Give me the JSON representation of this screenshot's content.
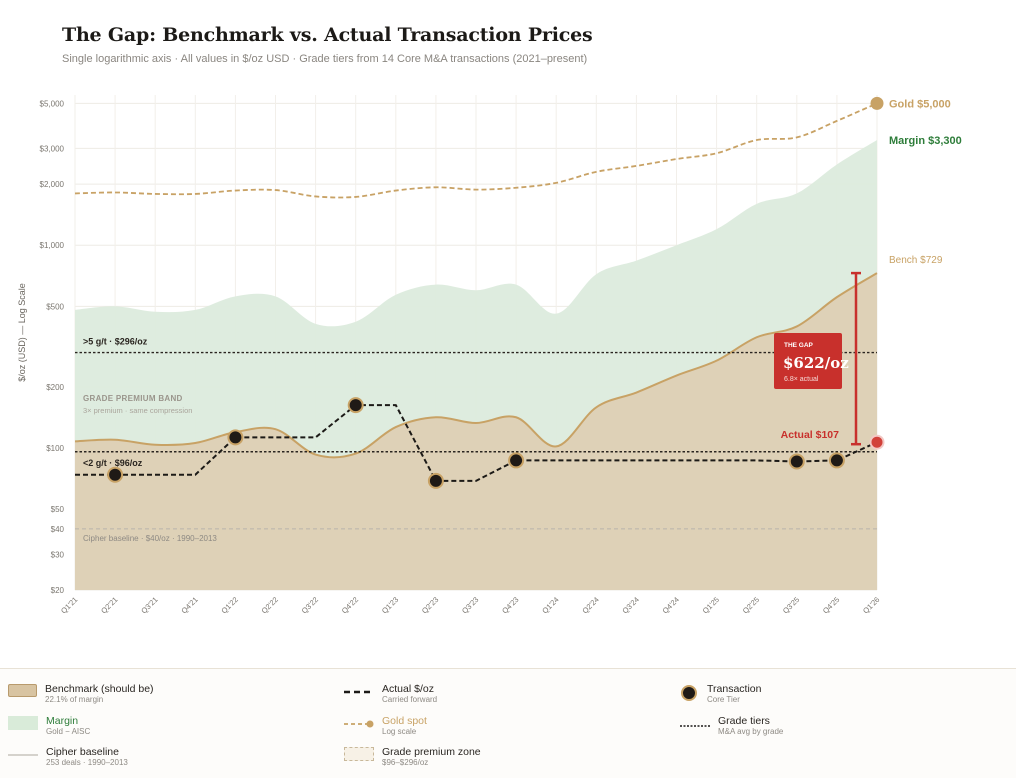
{
  "title": "The Gap: Benchmark vs. Actual Transaction Prices",
  "subtitle": "Single logarithmic axis · All values in $/oz USD · Grade tiers from 14 Core M&A transactions (2021–present)",
  "chart_data": {
    "type": "area",
    "ylabel": "$/oz (USD) — Log Scale",
    "yscale": "log",
    "ylim": [
      20,
      5500
    ],
    "yticks": [
      {
        "v": 20,
        "label": "$20"
      },
      {
        "v": 30,
        "label": "$30"
      },
      {
        "v": 40,
        "label": "$40"
      },
      {
        "v": 50,
        "label": "$50"
      },
      {
        "v": 100,
        "label": "$100"
      },
      {
        "v": 200,
        "label": "$200"
      },
      {
        "v": 500,
        "label": "$500"
      },
      {
        "v": 1000,
        "label": "$1,000"
      },
      {
        "v": 2000,
        "label": "$2,000"
      },
      {
        "v": 3000,
        "label": "$3,000"
      },
      {
        "v": 5000,
        "label": "$5,000"
      }
    ],
    "categories": [
      "Q1'21",
      "Q2'21",
      "Q3'21",
      "Q4'21",
      "Q1'22",
      "Q2'22",
      "Q3'22",
      "Q4'22",
      "Q1'23",
      "Q2'23",
      "Q3'23",
      "Q4'23",
      "Q1'24",
      "Q2'24",
      "Q3'24",
      "Q4'24",
      "Q1'25",
      "Q2'25",
      "Q3'25",
      "Q4'25",
      "Q1'26"
    ],
    "series": [
      {
        "name": "Gold spot",
        "color": "#c8a265",
        "values": [
          1800,
          1820,
          1790,
          1790,
          1860,
          1870,
          1740,
          1730,
          1860,
          1930,
          1880,
          1920,
          2030,
          2300,
          2460,
          2660,
          2840,
          3300,
          3400,
          4100,
          5000
        ]
      },
      {
        "name": "Margin",
        "color": "#2e7d3a",
        "values": [
          480,
          500,
          470,
          480,
          560,
          560,
          410,
          420,
          570,
          640,
          600,
          640,
          460,
          720,
          840,
          1000,
          1200,
          1600,
          1800,
          2500,
          3300
        ]
      },
      {
        "name": "Benchmark (should be)",
        "color": "#c8a265",
        "values": [
          108,
          110,
          104,
          106,
          120,
          124,
          93,
          94,
          127,
          142,
          133,
          142,
          102,
          159,
          188,
          228,
          270,
          352,
          398,
          555,
          729
        ]
      },
      {
        "name": "Actual $/oz",
        "color": "#2a2520",
        "values": [
          74,
          74,
          74,
          74,
          113,
          113,
          113,
          163,
          163,
          69,
          69,
          87,
          87,
          87,
          87,
          87,
          87,
          87,
          86,
          87,
          107
        ]
      }
    ],
    "transactions": [
      {
        "x": "Q2'21",
        "v": 74
      },
      {
        "x": "Q1'22",
        "v": 113
      },
      {
        "x": "Q4'22",
        "v": 163
      },
      {
        "x": "Q2'23",
        "v": 69
      },
      {
        "x": "Q4'23",
        "v": 87
      },
      {
        "x": "Q3'25",
        "v": 86
      },
      {
        "x": "Q4'25",
        "v": 87
      }
    ],
    "reference_lines": [
      {
        "label": ">5 g/t · $296/oz",
        "v": 296
      },
      {
        "label": "<2 g/t · $96/oz",
        "v": 96
      },
      {
        "label": "Cipher baseline · $40/oz · 1990–2013",
        "v": 40
      }
    ],
    "band": {
      "label": "GRADE PREMIUM BAND",
      "sublabel": "3× premium · same compression"
    },
    "end_labels": {
      "gold": "Gold $5,000",
      "margin": "Margin $3,300",
      "bench": "Bench $729",
      "actual": "Actual $107"
    },
    "gap": {
      "tag": "THE GAP",
      "value": "$622/oz",
      "sub": "6.8× actual"
    }
  },
  "legend": [
    {
      "label": "Benchmark (should be)",
      "sub": "22.1% of margin"
    },
    {
      "label": "Margin",
      "sub": "Gold − AISC",
      "color": "#2e7d3a"
    },
    {
      "label": "Cipher baseline",
      "sub": "253 deals · 1990–2013"
    },
    {
      "label": "Actual $/oz",
      "sub": "Carried forward"
    },
    {
      "label": "Gold spot",
      "sub": "Log scale",
      "color": "#c8a265"
    },
    {
      "label": "Grade premium zone",
      "sub": "$96–$296/oz"
    },
    {
      "label": "Transaction",
      "sub": "Core Tier"
    },
    {
      "label": "Grade tiers",
      "sub": "M&A avg by grade"
    }
  ]
}
